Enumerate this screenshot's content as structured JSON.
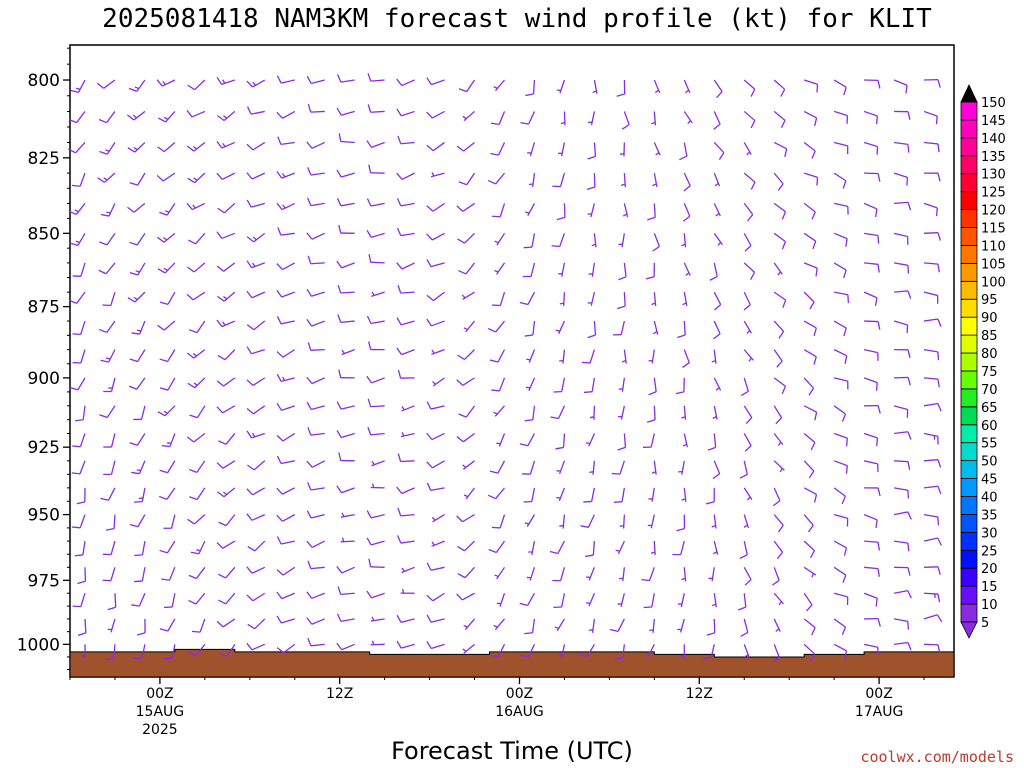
{
  "title": "2025081418 NAM3KM forecast wind profile (kt) for KLIT",
  "credit": "coolwx.com/models",
  "chart_data": {
    "type": "wind-barb-profile",
    "title": "2025081418 NAM3KM forecast wind profile (kt) for KLIT",
    "xlabel": "Forecast Time (UTC)",
    "ylabel": "",
    "x_ticks": [
      {
        "hour": 0,
        "lines": [
          "00Z",
          "15AUG",
          "2025"
        ]
      },
      {
        "hour": 12,
        "lines": [
          "12Z"
        ]
      },
      {
        "hour": 24,
        "lines": [
          "00Z",
          "16AUG"
        ]
      },
      {
        "hour": 36,
        "lines": [
          "12Z"
        ]
      },
      {
        "hour": 48,
        "lines": [
          "00Z",
          "17AUG"
        ]
      }
    ],
    "xlim_hours": [
      -6,
      53
    ],
    "y_ticks": [
      "800",
      "825",
      "850",
      "875",
      "900",
      "925",
      "950",
      "975",
      "1000"
    ],
    "ylim_hpa": [
      789,
      1013
    ],
    "y_scale": "log-pressure",
    "ground_color": "#a0522d",
    "barb_color": "#8a2be2",
    "ground_pressure_hpa": [
      [
        -6,
        1003
      ],
      [
        -2,
        1003
      ],
      [
        1,
        1002
      ],
      [
        5,
        1003
      ],
      [
        9,
        1003
      ],
      [
        11,
        1003
      ],
      [
        14,
        1004
      ],
      [
        19,
        1004
      ],
      [
        22,
        1003
      ],
      [
        27,
        1003
      ],
      [
        33,
        1004
      ],
      [
        37,
        1005
      ],
      [
        41,
        1005
      ],
      [
        43,
        1004
      ],
      [
        47,
        1003
      ],
      [
        53,
        1003
      ]
    ],
    "wind_keyframes": [
      {
        "hour": -6,
        "dir_surface": 180,
        "dir_top": 215,
        "spd_surface": 8,
        "spd_top": 12
      },
      {
        "hour": 0,
        "dir_surface": 190,
        "dir_top": 230,
        "spd_surface": 10,
        "spd_top": 14
      },
      {
        "hour": 6,
        "dir_surface": 230,
        "dir_top": 245,
        "spd_surface": 10,
        "spd_top": 12
      },
      {
        "hour": 10,
        "dir_surface": 250,
        "dir_top": 255,
        "spd_surface": 10,
        "spd_top": 11
      },
      {
        "hour": 14,
        "dir_surface": 260,
        "dir_top": 265,
        "spd_surface": 8,
        "spd_top": 10
      },
      {
        "hour": 18,
        "dir_surface": 260,
        "dir_top": 250,
        "spd_surface": 8,
        "spd_top": 10
      },
      {
        "hour": 24,
        "dir_surface": 200,
        "dir_top": 200,
        "spd_surface": 8,
        "spd_top": 8
      },
      {
        "hour": 30,
        "dir_surface": 200,
        "dir_top": 175,
        "spd_surface": 7,
        "spd_top": 7
      },
      {
        "hour": 36,
        "dir_surface": 190,
        "dir_top": 150,
        "spd_surface": 6,
        "spd_top": 8
      },
      {
        "hour": 42,
        "dir_surface": 145,
        "dir_top": 120,
        "spd_surface": 9,
        "spd_top": 10
      },
      {
        "hour": 48,
        "dir_surface": 90,
        "dir_top": 100,
        "spd_surface": 10,
        "spd_top": 10
      },
      {
        "hour": 53,
        "dir_surface": 80,
        "dir_top": 100,
        "spd_surface": 12,
        "spd_top": 10
      }
    ],
    "time_step_hours": 2,
    "levels_hpa": [
      800,
      810,
      820,
      830,
      840,
      850,
      860,
      870,
      880,
      890,
      900,
      910,
      920,
      930,
      940,
      950,
      960,
      970,
      980,
      990,
      1000
    ],
    "colorbar": {
      "labels": [
        "5",
        "10",
        "15",
        "20",
        "25",
        "30",
        "35",
        "40",
        "45",
        "50",
        "55",
        "60",
        "65",
        "70",
        "75",
        "80",
        "85",
        "90",
        "95",
        "100",
        "105",
        "110",
        "115",
        "120",
        "125",
        "130",
        "135",
        "140",
        "145",
        "150"
      ],
      "colors": [
        "#8a2be2",
        "#6a0dff",
        "#3a00ff",
        "#0010ff",
        "#0030ff",
        "#0055ff",
        "#0077ff",
        "#0099ff",
        "#00bbee",
        "#00ddcc",
        "#00eeaa",
        "#00dd55",
        "#22ee22",
        "#66ff00",
        "#aaff00",
        "#ddff00",
        "#ffff00",
        "#ffdd00",
        "#ffbb00",
        "#ff9900",
        "#ff7700",
        "#ff5500",
        "#ff3300",
        "#ff0000",
        "#ff0033",
        "#ff0066",
        "#ff0099",
        "#ff00bb",
        "#ff00dd",
        "#000000"
      ]
    }
  }
}
